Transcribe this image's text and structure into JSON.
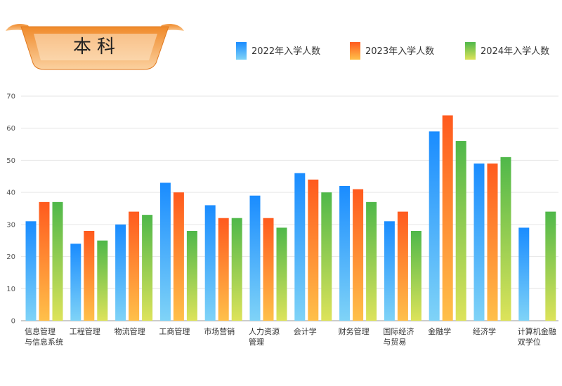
{
  "banner": {
    "title": "本科"
  },
  "colors": {
    "series_2022": [
      "#1a8cff",
      "#7fd3f7"
    ],
    "series_2023": [
      "#ff5a1e",
      "#ffc04a"
    ],
    "series_2024": [
      "#4fb84a",
      "#dde35a"
    ],
    "banner": [
      "#f08a2a",
      "#fbd1a0"
    ],
    "grid": "#e6e6e6",
    "axis": "#999999"
  },
  "chart_data": {
    "type": "bar",
    "categories": [
      [
        "信息管理",
        "与信息系统"
      ],
      [
        "工程管理"
      ],
      [
        "物流管理"
      ],
      [
        "工商管理"
      ],
      [
        "市场营销"
      ],
      [
        "人力资源",
        "管理"
      ],
      [
        "会计学"
      ],
      [
        "财务管理"
      ],
      [
        "国际经济",
        "与贸易"
      ],
      [
        "金融学"
      ],
      [
        "经济学"
      ],
      [
        "计算机金融",
        "双学位"
      ]
    ],
    "series": [
      {
        "name": "2022年入学人数",
        "values": [
          31,
          24,
          30,
          43,
          36,
          39,
          46,
          42,
          31,
          59,
          49,
          29
        ]
      },
      {
        "name": "2023年入学人数",
        "values": [
          37,
          28,
          34,
          40,
          32,
          32,
          44,
          41,
          34,
          64,
          49,
          null
        ]
      },
      {
        "name": "2024年入学人数",
        "values": [
          37,
          25,
          33,
          28,
          32,
          29,
          40,
          37,
          28,
          56,
          51,
          34
        ]
      }
    ],
    "ylim": [
      0,
      70
    ],
    "yticks": [
      0,
      10,
      20,
      30,
      40,
      50,
      60,
      70
    ],
    "grid": true,
    "legend_position": "top-right"
  }
}
